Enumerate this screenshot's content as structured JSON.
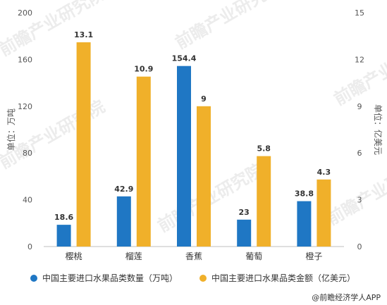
{
  "chart_data": {
    "type": "bar",
    "categories": [
      "樱桃",
      "榴莲",
      "香蕉",
      "葡萄",
      "橙子"
    ],
    "series": [
      {
        "name": "中国主要进口水果品类数量（万吨）",
        "values": [
          18.6,
          42.9,
          154.4,
          23,
          38.8
        ],
        "color": "#1f77c4",
        "axis": "left"
      },
      {
        "name": "中国主要进口水果品类金额（亿美元）",
        "values": [
          13.1,
          10.9,
          9,
          5.8,
          4.3
        ],
        "color": "#f0b02a",
        "axis": "right"
      }
    ],
    "y_left": {
      "label": "单位：万吨",
      "min": 0,
      "max": 200,
      "ticks": [
        0,
        40,
        80,
        120,
        160,
        200
      ]
    },
    "y_right": {
      "label": "单位：亿美元",
      "min": 0,
      "max": 15,
      "ticks": [
        0,
        3,
        6,
        9,
        12,
        15
      ]
    },
    "legend": {
      "position": "bottom"
    },
    "grid": false
  },
  "source_text": "@前瞻经济学人APP",
  "watermark_text": "前瞻产业研究院"
}
